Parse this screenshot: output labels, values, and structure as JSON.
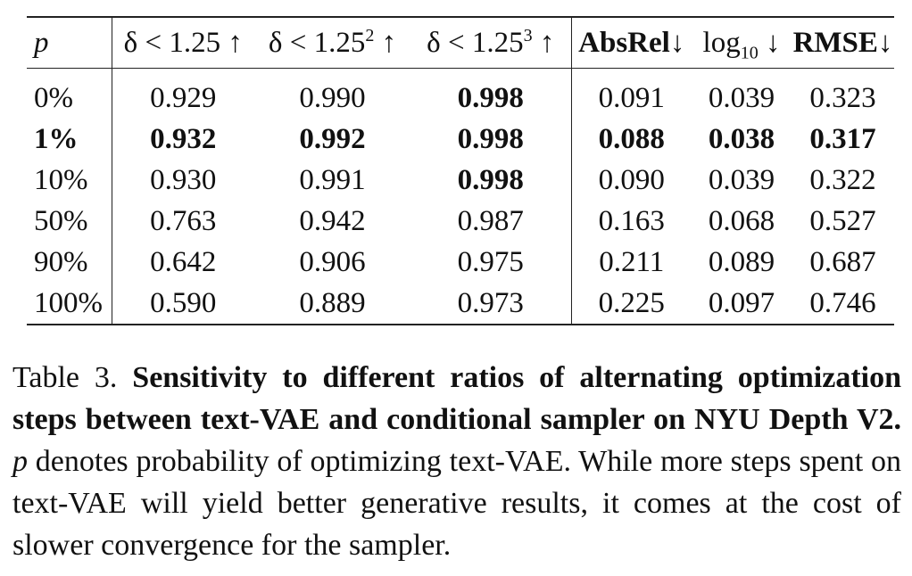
{
  "table": {
    "headers": [
      {
        "key": "p",
        "text": "p"
      },
      {
        "key": "d1",
        "text": "δ < 1.25 ↑"
      },
      {
        "key": "d2",
        "base": "δ < 1.25",
        "sup": "2",
        "arrow": " ↑"
      },
      {
        "key": "d3",
        "base": "δ < 1.25",
        "sup": "3",
        "arrow": " ↑"
      },
      {
        "key": "absrel",
        "text": "AbsRel↓"
      },
      {
        "key": "log10",
        "base": "log",
        "sub": "10",
        "arrow": " ↓"
      },
      {
        "key": "rmse",
        "text": "RMSE↓"
      }
    ],
    "rows": [
      {
        "p": "0%",
        "d1": "0.929",
        "d2": "0.990",
        "d3": "0.998",
        "absrel": "0.091",
        "log10": "0.039",
        "rmse": "0.323"
      },
      {
        "p": "1%",
        "d1": "0.932",
        "d2": "0.992",
        "d3": "0.998",
        "absrel": "0.088",
        "log10": "0.038",
        "rmse": "0.317"
      },
      {
        "p": "10%",
        "d1": "0.930",
        "d2": "0.991",
        "d3": "0.998",
        "absrel": "0.090",
        "log10": "0.039",
        "rmse": "0.322"
      },
      {
        "p": "50%",
        "d1": "0.763",
        "d2": "0.942",
        "d3": "0.987",
        "absrel": "0.163",
        "log10": "0.068",
        "rmse": "0.527"
      },
      {
        "p": "90%",
        "d1": "0.642",
        "d2": "0.906",
        "d3": "0.975",
        "absrel": "0.211",
        "log10": "0.089",
        "rmse": "0.687"
      },
      {
        "p": "100%",
        "d1": "0.590",
        "d2": "0.889",
        "d3": "0.973",
        "absrel": "0.225",
        "log10": "0.097",
        "rmse": "0.746"
      }
    ]
  },
  "caption": {
    "label": "Table 3.",
    "title": "Sensitivity to different ratios of alternating optimization steps between text-VAE and conditional sampler on NYU Depth V2.",
    "var": "p",
    "body": "denotes probability of optimizing text-VAE. While more steps spent on text-VAE will yield better generative results, it comes at the cost of slower convergence for the sampler."
  }
}
